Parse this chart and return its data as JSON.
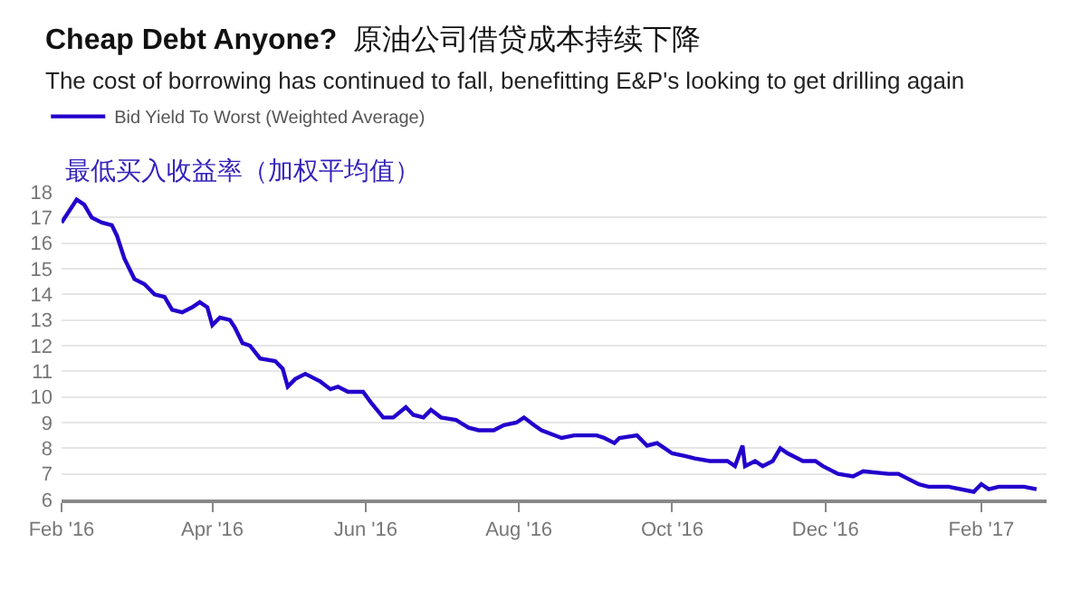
{
  "chart_data": {
    "type": "line",
    "title": "Cheap Debt Anyone?",
    "subtitle": "原油公司借贷成本持续下降\nThe cost of borrowing has continued to fall, benefitting E&P's looking to get drilling again",
    "annotations": [
      "最低买入收益率（加权平均值）"
    ],
    "x": [
      "2016-02-01",
      "2016-02-07",
      "2016-02-10",
      "2016-02-13",
      "2016-02-17",
      "2016-02-21",
      "2016-02-23",
      "2016-02-26",
      "2016-03-01",
      "2016-03-05",
      "2016-03-09",
      "2016-03-13",
      "2016-03-16",
      "2016-03-20",
      "2016-03-24",
      "2016-03-27",
      "2016-03-30",
      "2016-04-01",
      "2016-04-04",
      "2016-04-08",
      "2016-04-10",
      "2016-04-13",
      "2016-04-16",
      "2016-04-20",
      "2016-04-26",
      "2016-04-29",
      "2016-05-01",
      "2016-05-04",
      "2016-05-08",
      "2016-05-14",
      "2016-05-18",
      "2016-05-21",
      "2016-05-25",
      "2016-05-28",
      "2016-05-31",
      "2016-06-03",
      "2016-06-08",
      "2016-06-12",
      "2016-06-17",
      "2016-06-20",
      "2016-06-24",
      "2016-06-27",
      "2016-07-01",
      "2016-07-07",
      "2016-07-12",
      "2016-07-16",
      "2016-07-22",
      "2016-07-26",
      "2016-07-31",
      "2016-08-03",
      "2016-08-07",
      "2016-08-10",
      "2016-08-18",
      "2016-08-23",
      "2016-08-27",
      "2016-09-01",
      "2016-09-04",
      "2016-09-08",
      "2016-09-10",
      "2016-09-17",
      "2016-09-21",
      "2016-09-25",
      "2016-10-01",
      "2016-10-06",
      "2016-10-10",
      "2016-10-16",
      "2016-10-23",
      "2016-10-26",
      "2016-10-29",
      "2016-10-30",
      "2016-11-03",
      "2016-11-06",
      "2016-11-10",
      "2016-11-13",
      "2016-11-16",
      "2016-11-22",
      "2016-11-27",
      "2016-11-30",
      "2016-12-06",
      "2016-12-12",
      "2016-12-16",
      "2016-12-26",
      "2016-12-30",
      "2017-01-07",
      "2017-01-11",
      "2017-01-16",
      "2017-01-19",
      "2017-01-29",
      "2017-02-01",
      "2017-02-04",
      "2017-02-08",
      "2017-02-13",
      "2017-02-18",
      "2017-02-23"
    ],
    "series": [
      {
        "name": "Bid Yield To Worst (Weighted Average)",
        "color": "#2200cc",
        "values": [
          16.8,
          17.7,
          17.5,
          17.0,
          16.8,
          16.7,
          16.3,
          15.4,
          14.6,
          14.4,
          14.0,
          13.9,
          13.4,
          13.3,
          13.5,
          13.7,
          13.5,
          12.8,
          13.1,
          13.0,
          12.7,
          12.1,
          12.0,
          11.5,
          11.4,
          11.1,
          10.4,
          10.7,
          10.9,
          10.6,
          10.3,
          10.4,
          10.2,
          10.2,
          10.2,
          9.8,
          9.2,
          9.2,
          9.6,
          9.3,
          9.2,
          9.5,
          9.2,
          9.1,
          8.8,
          8.7,
          8.7,
          8.9,
          9.0,
          9.2,
          8.9,
          8.7,
          8.4,
          8.5,
          8.5,
          8.5,
          8.4,
          8.2,
          8.4,
          8.5,
          8.1,
          8.2,
          7.8,
          7.7,
          7.6,
          7.5,
          7.5,
          7.3,
          8.1,
          7.3,
          7.5,
          7.3,
          7.5,
          8.0,
          7.8,
          7.5,
          7.5,
          7.3,
          7.0,
          6.9,
          7.1,
          7.0,
          7.0,
          6.6,
          6.5,
          6.5,
          6.5,
          6.3,
          6.6,
          6.4,
          6.5,
          6.5,
          6.5,
          6.4
        ]
      }
    ],
    "xlim": [
      "2016-02-01",
      "2017-02-27"
    ],
    "xticks": [
      {
        "value": "2016-02-01",
        "label": "Feb '16"
      },
      {
        "value": "2016-04-01",
        "label": "Apr '16"
      },
      {
        "value": "2016-06-01",
        "label": "Jun '16"
      },
      {
        "value": "2016-08-01",
        "label": "Aug '16"
      },
      {
        "value": "2016-10-01",
        "label": "Oct '16"
      },
      {
        "value": "2016-12-01",
        "label": "Dec '16"
      },
      {
        "value": "2017-02-01",
        "label": "Feb '17"
      }
    ],
    "ylim": [
      6,
      18
    ],
    "yticks": [
      6,
      7,
      8,
      9,
      10,
      11,
      12,
      13,
      14,
      15,
      16,
      17,
      18
    ],
    "grid": "y",
    "legend": "top left",
    "marker": "none",
    "line_style": "solid"
  }
}
